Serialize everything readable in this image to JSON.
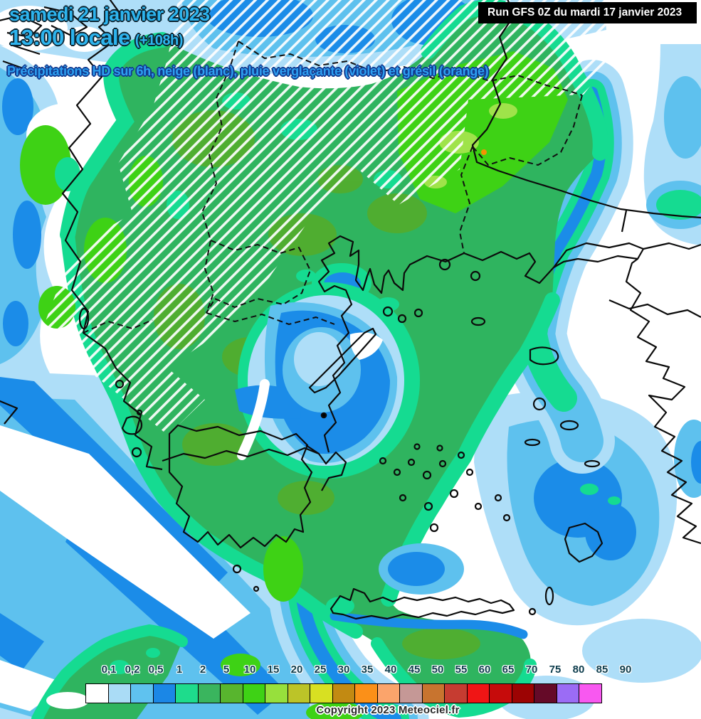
{
  "header": {
    "date_line": "samedi 21 janvier 2023",
    "time_line": "13:00 locale",
    "run_offset": "(+108h)",
    "run_label": "Run GFS 0Z du mardi 17 janvier 2023",
    "subtitle": "Précipitations HD sur 6h, neige (blanc), pluie verglaçante (violet) et grésil (orange)"
  },
  "legend": {
    "unit_labels": [
      "0,1",
      "0,2",
      "0,5",
      "1",
      "2",
      "5",
      "10",
      "15",
      "20",
      "25",
      "30",
      "35",
      "40",
      "45",
      "50",
      "55",
      "60",
      "65",
      "70",
      "75",
      "80",
      "85",
      "90"
    ],
    "colors": [
      "#ffffff",
      "#aadcf6",
      "#5fc2ef",
      "#1b87e6",
      "#1edc8c",
      "#3ab55e",
      "#58b52e",
      "#3ed215",
      "#97e03c",
      "#bcc428",
      "#d8e022",
      "#c28a12",
      "#fb9018",
      "#fba46b",
      "#c59896",
      "#c8742f",
      "#c63c31",
      "#f01515",
      "#c60b0b",
      "#9c0303",
      "#650a28",
      "#9b6cf5",
      "#f858f0"
    ]
  },
  "map_palette": {
    "no_precip": "#ffffff",
    "pale_blue": "#aedef8",
    "light_blue": "#5ec1ee",
    "medium_blue": "#1b8ce8",
    "turquoise": "#15db91",
    "green": "#2fb45f",
    "leaf_green": "#53ad2c",
    "vivid_green": "#3ed215",
    "pale_lime": "#9fe34a",
    "snow_hatch": "#ffffff",
    "sleet_orange": "#f59202"
  },
  "footer": {
    "copyright": "Copyright 2023 Meteociel.fr"
  }
}
